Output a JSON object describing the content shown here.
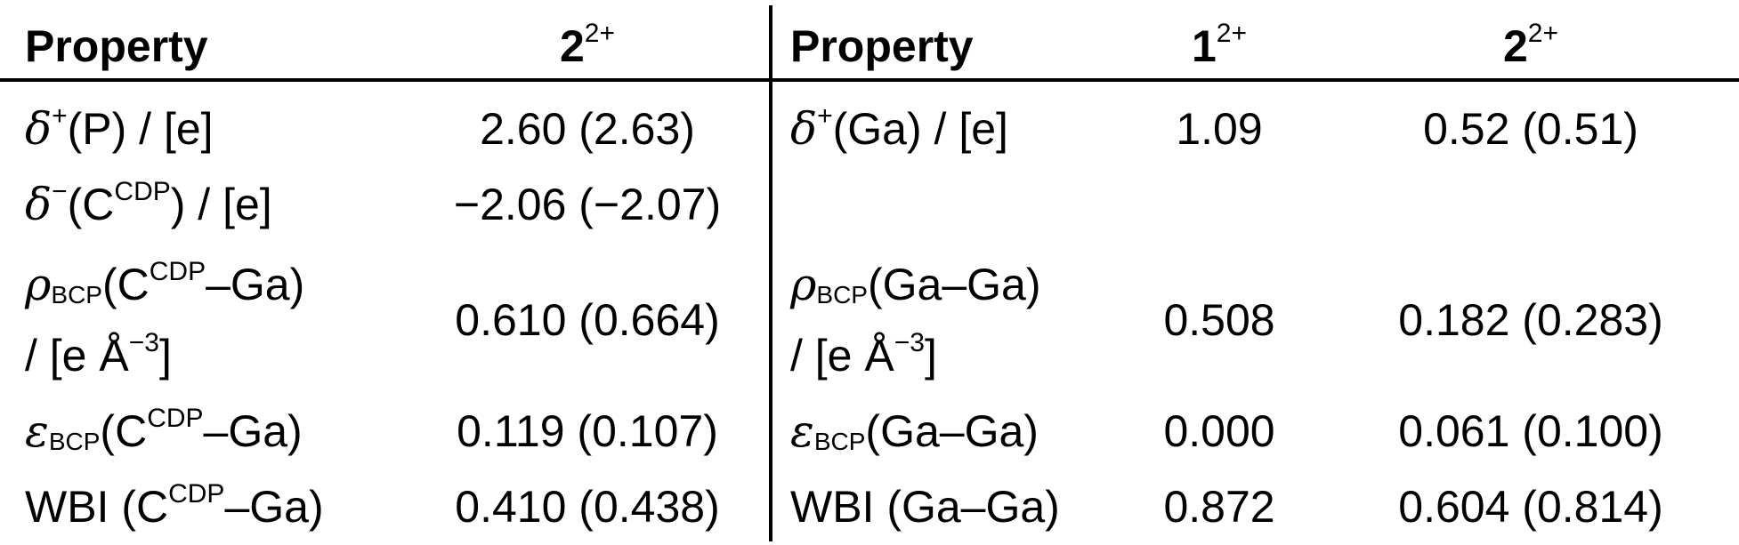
{
  "table": {
    "left": {
      "header": {
        "property": "Property",
        "col2_main": "2",
        "col2_sup": "2+"
      },
      "rows": [
        {
          "sym": "δ",
          "sym_sup": "+",
          "text": "(P) / [e]",
          "value": "2.60 (2.63)"
        },
        {
          "sym": "δ",
          "sym_sup": "−",
          "pre": "(C",
          "sup": "CDP",
          "post": ") / [e]",
          "value": "−2.06 (−2.07)"
        },
        {
          "sym": "ρ",
          "sub": "BCP",
          "pre": "(C",
          "sup": "CDP",
          "post": "–Ga)",
          "line2_pre": "/ [e Å",
          "line2_sup": "−3",
          "line2_post": "]",
          "value": "0.610 (0.664)"
        },
        {
          "sym": "ε",
          "sub": "BCP",
          "pre": "(C",
          "sup": "CDP",
          "post": "–Ga)",
          "value": "0.119 (0.107)"
        },
        {
          "pre": "WBI (C",
          "sup": "CDP",
          "post": "–Ga)",
          "value": "0.410 (0.438)"
        }
      ]
    },
    "right": {
      "header": {
        "property": "Property",
        "col2_main": "1",
        "col2_sup": "2+",
        "col3_main": "2",
        "col3_sup": "2+"
      },
      "rows": [
        {
          "sym": "δ",
          "sym_sup": "+",
          "text": "(Ga) / [e]",
          "v1": "1.09",
          "v2": "0.52 (0.51)"
        },
        {
          "sym": "ρ",
          "sub": "BCP",
          "text": "(Ga–Ga)",
          "line2_pre": "/ [e Å",
          "line2_sup": "−3",
          "line2_post": "]",
          "v1": "0.508",
          "v2": "0.182 (0.283)"
        },
        {
          "sym": "ε",
          "sub": "BCP",
          "text": "(Ga–Ga)",
          "v1": "0.000",
          "v2": "0.061 (0.100)"
        },
        {
          "text": "WBI (Ga–Ga)",
          "v1": "0.872",
          "v2": "0.604 (0.814)"
        }
      ]
    }
  }
}
